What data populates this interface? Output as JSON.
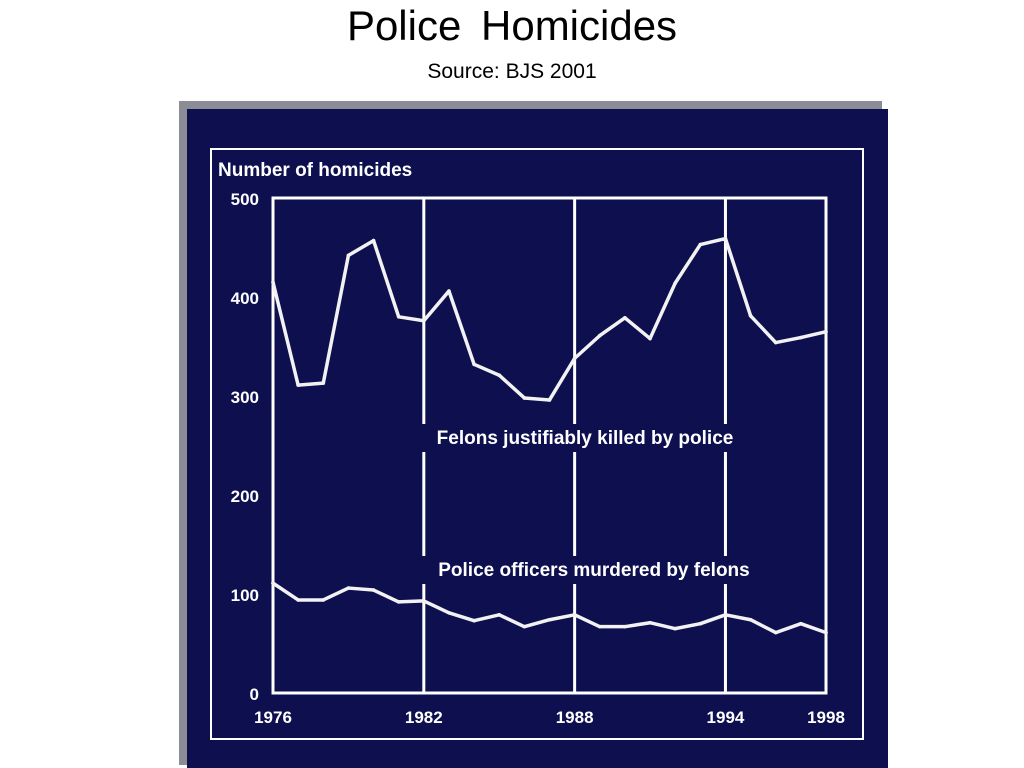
{
  "slide": {
    "title": "Police Homicides",
    "subtitle": "Source: BJS 2001"
  },
  "colors": {
    "panel": "#0d0f4f",
    "ink": "#ffffff",
    "shadow": "#8c8c96"
  },
  "chart_data": {
    "type": "line",
    "title": "",
    "ylabel": "Number of homicides",
    "xlabel": "",
    "xlim": [
      1976,
      1998
    ],
    "ylim": [
      0,
      500
    ],
    "x_ticks": [
      "1976",
      "1982",
      "1988",
      "1994",
      "1998"
    ],
    "y_ticks": [
      "0",
      "100",
      "200",
      "300",
      "400",
      "500"
    ],
    "vertical_lines": [
      1982,
      1988,
      1994
    ],
    "x": [
      1976,
      1977,
      1978,
      1979,
      1980,
      1981,
      1982,
      1983,
      1984,
      1985,
      1986,
      1987,
      1988,
      1989,
      1990,
      1991,
      1992,
      1993,
      1994,
      1995,
      1996,
      1997,
      1998
    ],
    "series": [
      {
        "name": "Felons justifiably killed by police",
        "values": [
          415,
          311,
          313,
          442,
          457,
          380,
          376,
          406,
          332,
          321,
          298,
          296,
          338,
          361,
          379,
          358,
          414,
          453,
          459,
          381,
          354,
          359,
          365
        ]
      },
      {
        "name": "Police officers murdered by felons",
        "values": [
          111,
          94,
          94,
          106,
          104,
          92,
          93,
          81,
          73,
          79,
          67,
          74,
          79,
          67,
          67,
          71,
          65,
          70,
          79,
          74,
          61,
          70,
          61
        ]
      }
    ],
    "grid": false,
    "legend": "inline-labels"
  }
}
